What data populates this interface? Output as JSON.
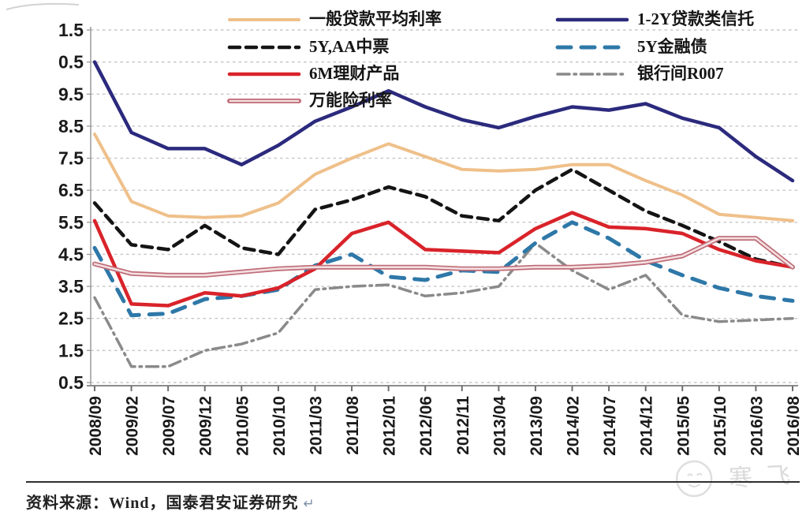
{
  "chart_data": {
    "type": "line",
    "title": "",
    "x_tick_labels": [
      "2008/09",
      "2009/02",
      "2009/07",
      "2009/12",
      "2010/05",
      "2010/10",
      "2011/03",
      "2011/08",
      "2012/01",
      "2012/06",
      "2012/11",
      "2013/04",
      "2013/09",
      "2014/02",
      "2014/07",
      "2014/12",
      "2015/05",
      "2015/10",
      "2016/03",
      "2016/08"
    ],
    "y_tick_labels_displayed": [
      "1.5",
      "0.5",
      "9.5",
      "8.5",
      "7.5",
      "6.5",
      "5.5",
      "4.5",
      "3.5",
      "2.5",
      "1.5",
      "0.5"
    ],
    "y_axis": {
      "min": 0.5,
      "max": 11.5,
      "step": 1.0,
      "grid": "dashed"
    },
    "legend_position": "top-inside-two-columns",
    "series": [
      {
        "id": "loan-avg-rate",
        "name": "一般贷款平均利率",
        "legend_column": "left",
        "legend_row": 0,
        "color": "#efc08a",
        "style": "solid",
        "width": 4,
        "values": [
          8.25,
          6.15,
          5.7,
          5.65,
          5.7,
          6.1,
          7.0,
          7.5,
          7.95,
          7.55,
          7.15,
          7.1,
          7.15,
          7.3,
          7.3,
          6.8,
          6.35,
          5.75,
          5.65,
          5.55
        ]
      },
      {
        "id": "aa-mtn-5y",
        "name": "5Y,AA中票",
        "legend_column": "left",
        "legend_row": 1,
        "color": "#141414",
        "style": "dashed",
        "width": 4.5,
        "values": [
          6.1,
          4.8,
          4.65,
          5.4,
          4.7,
          4.5,
          5.9,
          6.2,
          6.6,
          6.3,
          5.7,
          5.55,
          6.5,
          7.15,
          6.5,
          5.85,
          5.4,
          4.9,
          4.35,
          4.1
        ]
      },
      {
        "id": "wmp-6m",
        "name": "6M理财产品",
        "legend_column": "left",
        "legend_row": 2,
        "color": "#d9232a",
        "style": "solid",
        "width": 4.5,
        "values": [
          5.55,
          2.95,
          2.9,
          3.3,
          3.2,
          3.45,
          4.05,
          5.15,
          5.5,
          4.65,
          4.6,
          4.55,
          5.3,
          5.8,
          5.35,
          5.3,
          5.15,
          4.65,
          4.3,
          4.1
        ]
      },
      {
        "id": "universal-ins",
        "name": "万能险利率",
        "legend_column": "left",
        "legend_row": 3,
        "color": "#bf6b76",
        "style": "outlined",
        "width": 6,
        "inner_color": "#f3dfe1",
        "values": [
          4.2,
          3.9,
          3.85,
          3.85,
          3.95,
          4.05,
          4.1,
          4.1,
          4.1,
          4.1,
          4.05,
          4.05,
          4.1,
          4.1,
          4.15,
          4.25,
          4.45,
          5.0,
          5.0,
          4.1
        ]
      },
      {
        "id": "trust-1-2y",
        "name": "1-2Y贷款类信托",
        "legend_column": "right",
        "legend_row": 0,
        "color": "#2b2a7d",
        "style": "solid",
        "width": 4.5,
        "values": [
          10.5,
          8.3,
          7.8,
          7.8,
          7.3,
          7.9,
          8.65,
          9.1,
          9.6,
          9.1,
          8.7,
          8.45,
          8.8,
          9.1,
          9.0,
          9.2,
          8.75,
          8.45,
          7.55,
          6.8
        ]
      },
      {
        "id": "fin-bond-5y",
        "name": "5Y金融债",
        "legend_column": "right",
        "legend_row": 1,
        "color": "#2e78a8",
        "style": "dashed-long",
        "width": 5,
        "values": [
          4.7,
          2.6,
          2.65,
          3.1,
          3.2,
          3.4,
          4.15,
          4.5,
          3.8,
          3.7,
          4.0,
          3.95,
          4.85,
          5.5,
          5.0,
          4.3,
          3.85,
          3.45,
          3.2,
          3.05
        ]
      },
      {
        "id": "r007",
        "name": "银行间R007",
        "legend_column": "right",
        "legend_row": 2,
        "color": "#8a8a8a",
        "style": "dash-dot",
        "width": 3.5,
        "values": [
          3.15,
          1.0,
          1.0,
          1.5,
          1.7,
          2.05,
          3.4,
          3.5,
          3.55,
          3.2,
          3.3,
          3.5,
          4.85,
          4.0,
          3.4,
          3.85,
          2.6,
          2.4,
          2.45,
          2.5
        ]
      }
    ],
    "colors": {
      "gridline": "#c6c6c6",
      "axis_line": "#9a9a9a",
      "bottom_spine": "#8c8c8c",
      "tick_label": "#1a1a1a"
    }
  },
  "source": {
    "note": "资料来源：Wind，国泰君安证券研究",
    "return_mark": "↵"
  },
  "watermark": {
    "text": "寒飞"
  }
}
